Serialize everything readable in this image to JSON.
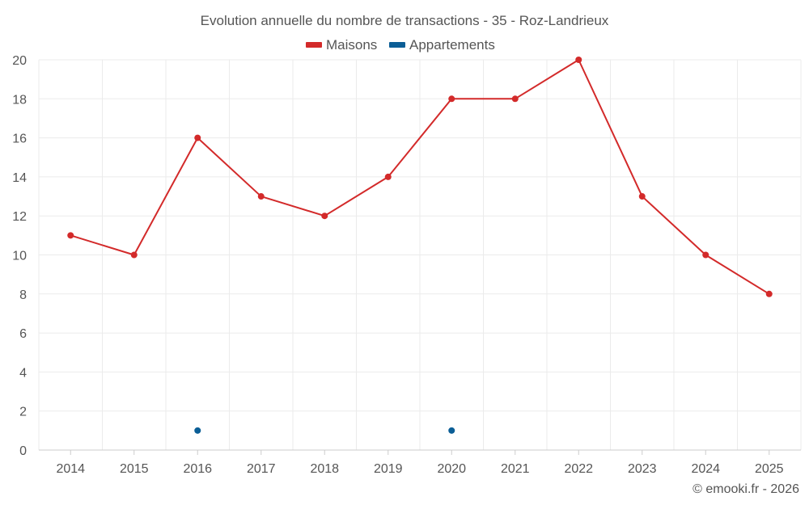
{
  "chart_data": {
    "type": "line",
    "title": "Evolution annuelle du nombre de transactions - 35 - Roz-Landrieux",
    "categories": [
      "2014",
      "2015",
      "2016",
      "2017",
      "2018",
      "2019",
      "2020",
      "2021",
      "2022",
      "2023",
      "2024",
      "2025"
    ],
    "series": [
      {
        "name": "Maisons",
        "color": "#d32a2a",
        "values": [
          11,
          10,
          16,
          13,
          12,
          14,
          18,
          18,
          20,
          13,
          10,
          8
        ]
      },
      {
        "name": "Appartements",
        "color": "#0b5e96",
        "values": [
          null,
          null,
          1,
          null,
          null,
          null,
          1,
          null,
          null,
          null,
          null,
          null
        ]
      }
    ],
    "ylim": [
      0,
      20
    ],
    "yticks": [
      "0",
      "2",
      "4",
      "6",
      "8",
      "10",
      "12",
      "14",
      "16",
      "18",
      "20"
    ],
    "legend_position": "top-center",
    "grid": true
  },
  "credit": "© emooki.fr - 2026"
}
